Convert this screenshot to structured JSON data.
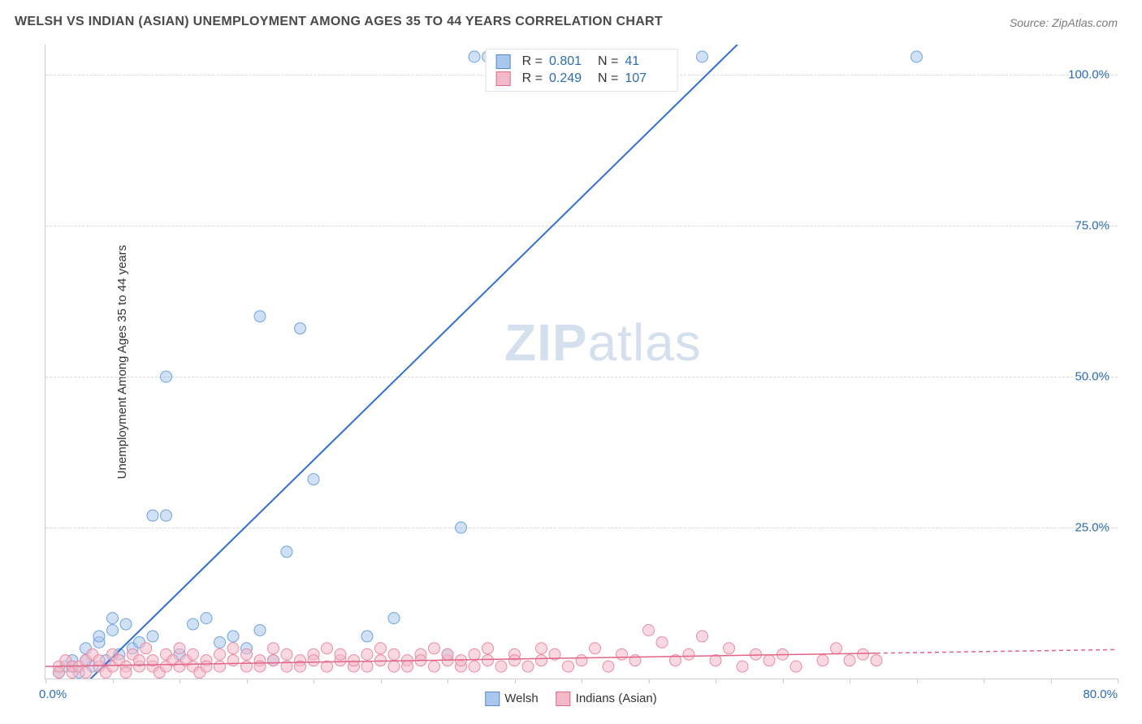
{
  "title": "WELSH VS INDIAN (ASIAN) UNEMPLOYMENT AMONG AGES 35 TO 44 YEARS CORRELATION CHART",
  "source": "Source: ZipAtlas.com",
  "watermark_zip": "ZIP",
  "watermark_atlas": "atlas",
  "y_axis_label": "Unemployment Among Ages 35 to 44 years",
  "chart": {
    "type": "scatter",
    "xlim": [
      0,
      80
    ],
    "ylim": [
      0,
      105
    ],
    "x_tick_labels": {
      "min": "0.0%",
      "max": "80.0%"
    },
    "x_tick_step": 5,
    "y_tick_labels": [
      "25.0%",
      "50.0%",
      "75.0%",
      "100.0%"
    ],
    "y_tick_values": [
      25,
      50,
      75,
      100
    ],
    "background_color": "#ffffff",
    "grid_color": "#d8d8d8",
    "axis_color": "#cccccc",
    "tick_label_color": "#2b6cb0",
    "watermark_color": "#d5e0ee",
    "series": [
      {
        "name": "Welsh",
        "color_fill": "#a9c7ec",
        "color_stroke": "#6fa3dc",
        "swatch_fill": "#a9c7ec",
        "swatch_border": "#5b8bc9",
        "line_color": "#2f6fd0",
        "marker_radius": 7,
        "marker_opacity": 0.55,
        "line_width": 2,
        "R": "0.801",
        "N": "41",
        "trend": {
          "x1": 2,
          "y1": -3,
          "x2": 53,
          "y2": 108
        },
        "points": [
          [
            1,
            1
          ],
          [
            1.5,
            2
          ],
          [
            2,
            2
          ],
          [
            2,
            3
          ],
          [
            2.5,
            1
          ],
          [
            3,
            3
          ],
          [
            3,
            5
          ],
          [
            3.5,
            2
          ],
          [
            4,
            6
          ],
          [
            4,
            7
          ],
          [
            4.5,
            3
          ],
          [
            5,
            8
          ],
          [
            5,
            10
          ],
          [
            5.5,
            4
          ],
          [
            6,
            9
          ],
          [
            6.5,
            5
          ],
          [
            7,
            6
          ],
          [
            8,
            7
          ],
          [
            8,
            27
          ],
          [
            9,
            27
          ],
          [
            9,
            50
          ],
          [
            10,
            4
          ],
          [
            11,
            9
          ],
          [
            12,
            10
          ],
          [
            13,
            6
          ],
          [
            14,
            7
          ],
          [
            15,
            5
          ],
          [
            16,
            8
          ],
          [
            16,
            60
          ],
          [
            17,
            3
          ],
          [
            18,
            21
          ],
          [
            19,
            58
          ],
          [
            20,
            33
          ],
          [
            24,
            7
          ],
          [
            26,
            10
          ],
          [
            30,
            4
          ],
          [
            31,
            25
          ],
          [
            32,
            103
          ],
          [
            33,
            103
          ],
          [
            49,
            103
          ],
          [
            65,
            103
          ]
        ]
      },
      {
        "name": "Indians (Asian)",
        "color_fill": "#f4b9c8",
        "color_stroke": "#e88ba3",
        "swatch_fill": "#f4b9c8",
        "swatch_border": "#d96b88",
        "line_color": "#e26385",
        "marker_radius": 7,
        "marker_opacity": 0.55,
        "line_width": 1.5,
        "R": "0.249",
        "N": "107",
        "trend": {
          "x1": 0,
          "y1": 2,
          "x2": 62,
          "y2": 4.2
        },
        "trend_dash": {
          "x1": 62,
          "y1": 4.2,
          "x2": 80,
          "y2": 4.8
        },
        "points": [
          [
            1,
            1
          ],
          [
            1,
            2
          ],
          [
            1.5,
            3
          ],
          [
            2,
            1
          ],
          [
            2,
            2
          ],
          [
            2.5,
            2
          ],
          [
            3,
            3
          ],
          [
            3,
            1
          ],
          [
            3.5,
            4
          ],
          [
            4,
            2
          ],
          [
            4,
            3
          ],
          [
            4.5,
            1
          ],
          [
            5,
            2
          ],
          [
            5,
            4
          ],
          [
            5.5,
            3
          ],
          [
            6,
            2
          ],
          [
            6,
            1
          ],
          [
            6.5,
            4
          ],
          [
            7,
            2
          ],
          [
            7,
            3
          ],
          [
            7.5,
            5
          ],
          [
            8,
            2
          ],
          [
            8,
            3
          ],
          [
            8.5,
            1
          ],
          [
            9,
            4
          ],
          [
            9,
            2
          ],
          [
            9.5,
            3
          ],
          [
            10,
            2
          ],
          [
            10,
            5
          ],
          [
            10.5,
            3
          ],
          [
            11,
            2
          ],
          [
            11,
            4
          ],
          [
            11.5,
            1
          ],
          [
            12,
            3
          ],
          [
            12,
            2
          ],
          [
            13,
            4
          ],
          [
            13,
            2
          ],
          [
            14,
            3
          ],
          [
            14,
            5
          ],
          [
            15,
            2
          ],
          [
            15,
            4
          ],
          [
            16,
            3
          ],
          [
            16,
            2
          ],
          [
            17,
            5
          ],
          [
            17,
            3
          ],
          [
            18,
            2
          ],
          [
            18,
            4
          ],
          [
            19,
            3
          ],
          [
            19,
            2
          ],
          [
            20,
            4
          ],
          [
            20,
            3
          ],
          [
            21,
            2
          ],
          [
            21,
            5
          ],
          [
            22,
            3
          ],
          [
            22,
            4
          ],
          [
            23,
            2
          ],
          [
            23,
            3
          ],
          [
            24,
            4
          ],
          [
            24,
            2
          ],
          [
            25,
            5
          ],
          [
            25,
            3
          ],
          [
            26,
            2
          ],
          [
            26,
            4
          ],
          [
            27,
            3
          ],
          [
            27,
            2
          ],
          [
            28,
            4
          ],
          [
            28,
            3
          ],
          [
            29,
            2
          ],
          [
            29,
            5
          ],
          [
            30,
            3
          ],
          [
            30,
            4
          ],
          [
            31,
            2
          ],
          [
            31,
            3
          ],
          [
            32,
            4
          ],
          [
            32,
            2
          ],
          [
            33,
            5
          ],
          [
            33,
            3
          ],
          [
            34,
            2
          ],
          [
            35,
            4
          ],
          [
            35,
            3
          ],
          [
            36,
            2
          ],
          [
            37,
            5
          ],
          [
            37,
            3
          ],
          [
            38,
            4
          ],
          [
            39,
            2
          ],
          [
            40,
            3
          ],
          [
            41,
            5
          ],
          [
            42,
            2
          ],
          [
            43,
            4
          ],
          [
            44,
            3
          ],
          [
            45,
            8
          ],
          [
            46,
            6
          ],
          [
            47,
            3
          ],
          [
            48,
            4
          ],
          [
            49,
            7
          ],
          [
            50,
            3
          ],
          [
            51,
            5
          ],
          [
            52,
            2
          ],
          [
            53,
            4
          ],
          [
            54,
            3
          ],
          [
            55,
            4
          ],
          [
            56,
            2
          ],
          [
            58,
            3
          ],
          [
            59,
            5
          ],
          [
            60,
            3
          ],
          [
            61,
            4
          ],
          [
            62,
            3
          ]
        ]
      }
    ]
  },
  "legend": {
    "welsh": "Welsh",
    "indians": "Indians (Asian)"
  },
  "stats_labels": {
    "R": "R =",
    "N": "N ="
  }
}
